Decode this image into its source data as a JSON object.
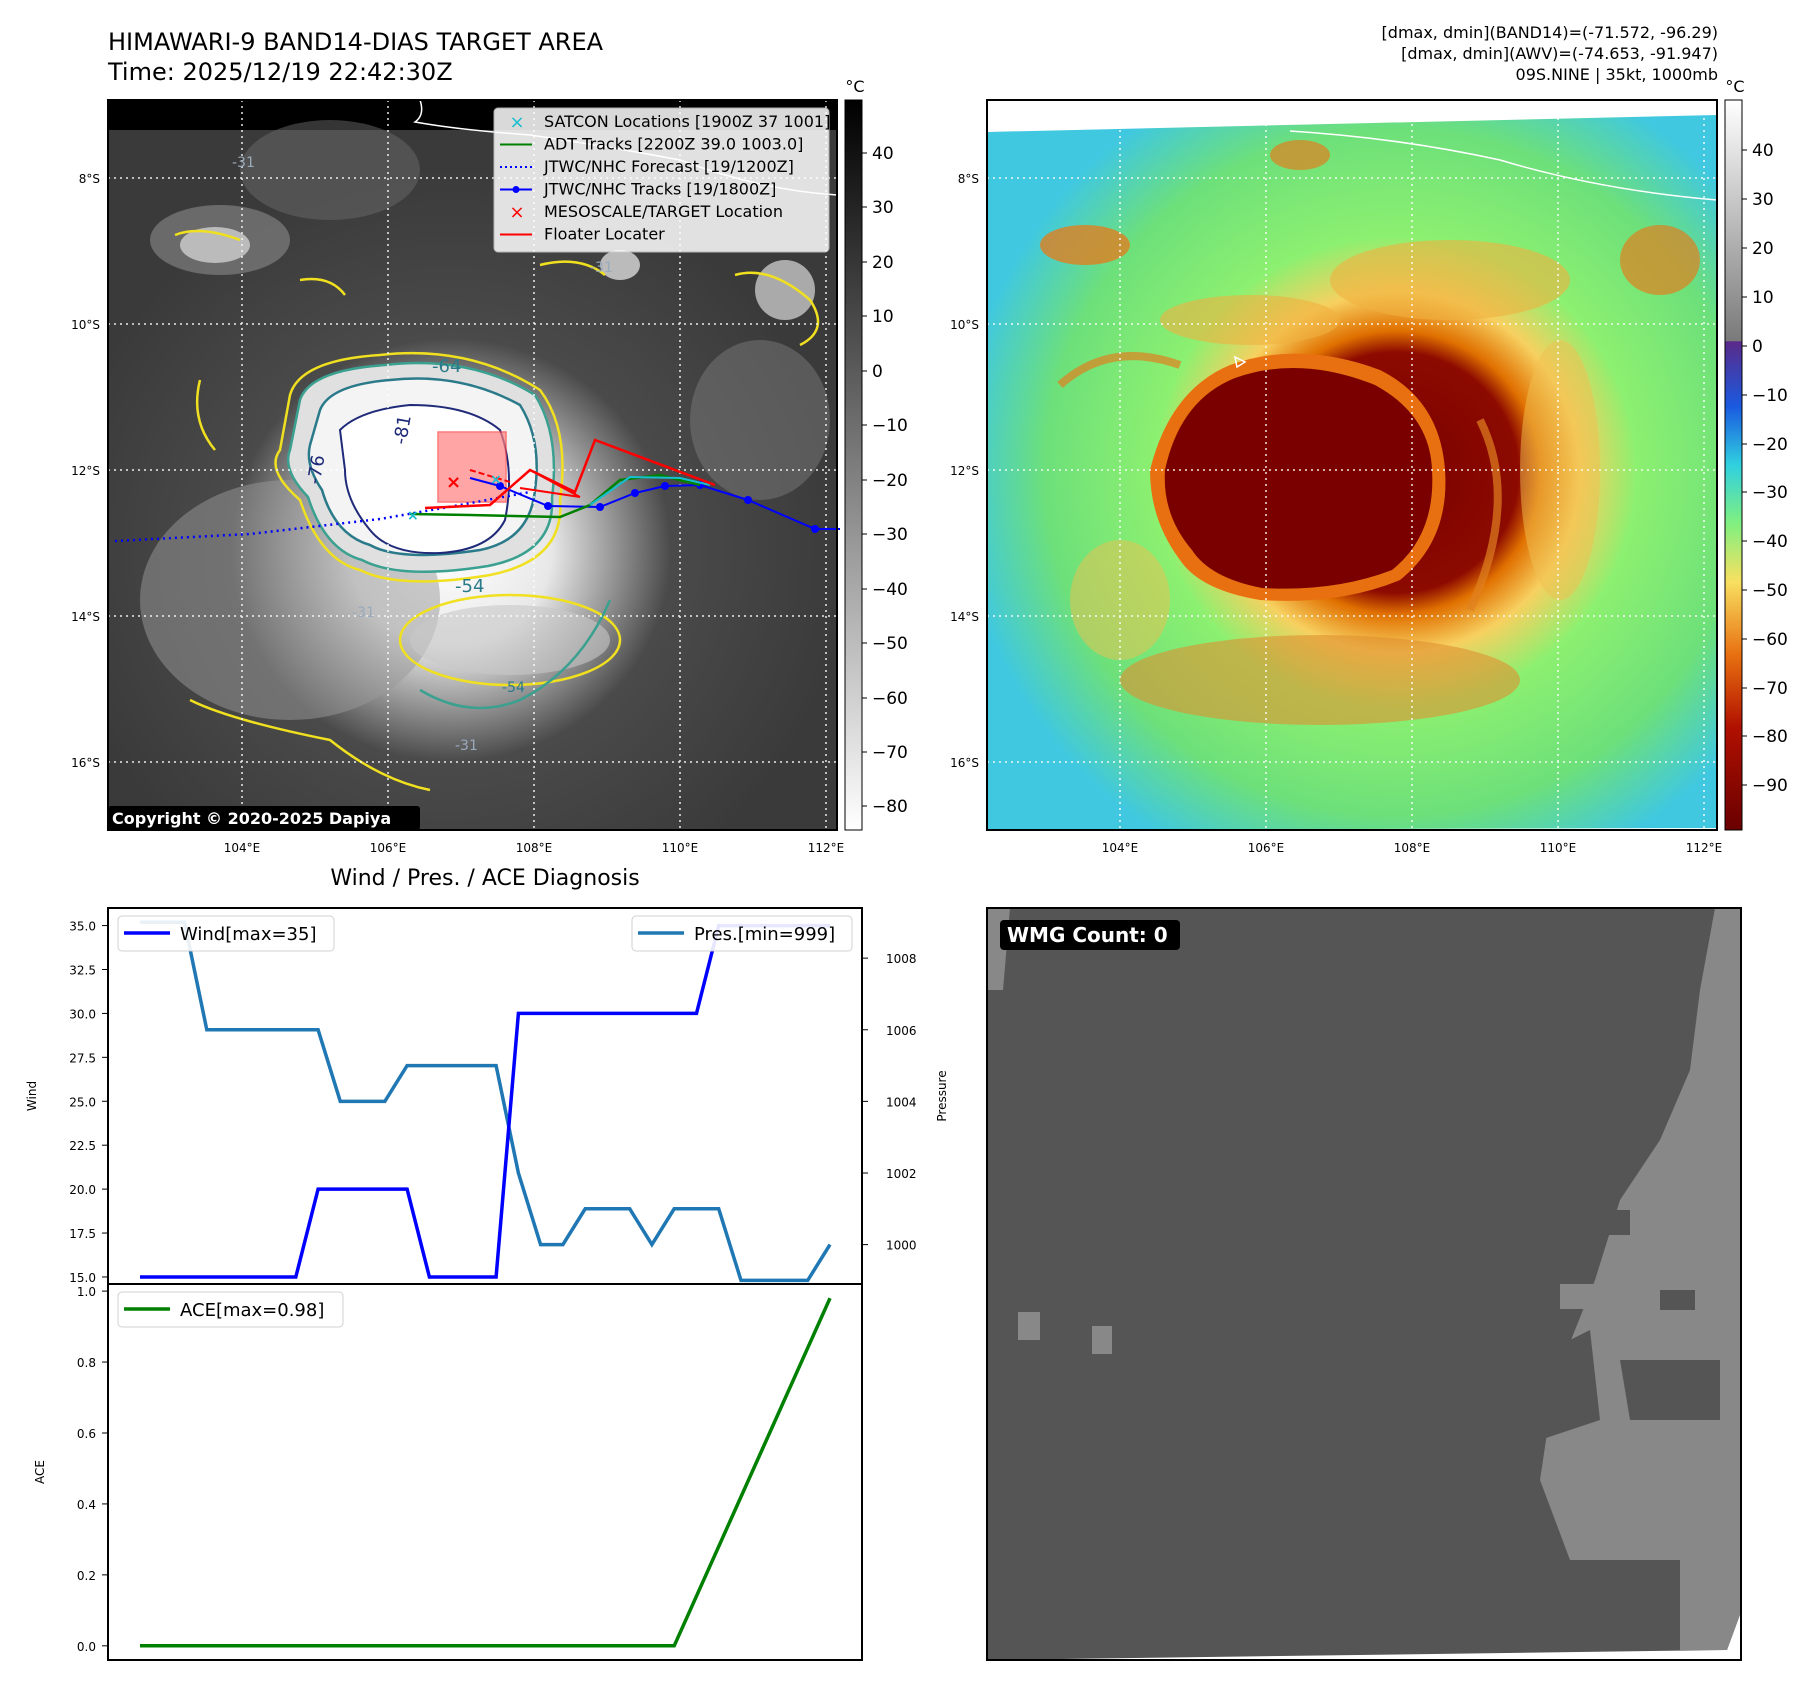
{
  "header": {
    "title": "HIMAWARI-9 BAND14-DIAS TARGET AREA",
    "time": "Time: 2025/12/19 22:42:30Z",
    "stats_band14": "[dmax, dmin](BAND14)=(-71.572, -96.29)",
    "stats_awv": "[dmax, dmin](AWV)=(-74.653, -91.947)",
    "storm_info": "09S.NINE | 35kt, 1000mb"
  },
  "copyright": "Copyright © 2020-2025 Dapiya",
  "map_axes": {
    "lon_labels": [
      "104°E",
      "106°E",
      "108°E",
      "110°E",
      "112°E"
    ],
    "lat_labels": [
      "8°S",
      "10°S",
      "12°S",
      "14°S",
      "16°S"
    ]
  },
  "legend_map": {
    "items": [
      {
        "label": "SATCON Locations [1900Z 37 1001]",
        "color": "#17becf",
        "marker": "x"
      },
      {
        "label": "ADT Tracks [2200Z 39.0 1003.0]",
        "color": "#008000",
        "marker": "line"
      },
      {
        "label": "JTWC/NHC Forecast [19/1200Z]",
        "color": "#0000ff",
        "marker": "dotted"
      },
      {
        "label": "JTWC/NHC Tracks [19/1800Z]",
        "color": "#0000ff",
        "marker": "line-dot"
      },
      {
        "label": "MESOSCALE/TARGET Location",
        "color": "#ff0000",
        "marker": "x"
      },
      {
        "label": "Floater Locater",
        "color": "#ff0000",
        "marker": "line"
      }
    ]
  },
  "contour_labels": [
    "-64",
    "-76",
    "-81",
    "-54",
    "-31",
    "-31",
    "-31",
    "-54",
    "-31"
  ],
  "colorbar_left": {
    "unit": "°C",
    "ticks": [
      "40",
      "30",
      "20",
      "10",
      "0",
      "−10",
      "−20",
      "−30",
      "−40",
      "−50",
      "−60",
      "−70",
      "−80"
    ]
  },
  "colorbar_right": {
    "unit": "°C",
    "ticks": [
      "40",
      "30",
      "20",
      "10",
      "0",
      "−10",
      "−20",
      "−30",
      "−40",
      "−50",
      "−60",
      "−70",
      "−80",
      "−90"
    ]
  },
  "wmg": {
    "label": "WMG Count: 0"
  },
  "chart_data": [
    {
      "type": "line",
      "title": "Wind / Pres. / ACE Diagnosis",
      "ylabel": "Wind",
      "y2label": "Pressure",
      "ylim": [
        14.6,
        36.0
      ],
      "y2lim": [
        998.9,
        1009.4
      ],
      "yticks": [
        "35.0",
        "32.5",
        "30.0",
        "27.5",
        "25.0",
        "22.5",
        "20.0",
        "17.5",
        "15.0"
      ],
      "y2ticks": [
        "1008",
        "1006",
        "1004",
        "1002",
        "1000"
      ],
      "series": [
        {
          "name": "Wind[max=35]",
          "color": "#0000ff",
          "axis": "left",
          "x": [
            0,
            7,
            8,
            12,
            13,
            16,
            17,
            18,
            19,
            25,
            26,
            31
          ],
          "values": [
            15,
            15,
            20,
            20,
            15,
            15,
            30,
            30,
            30,
            30,
            35,
            35
          ]
        },
        {
          "name": "Pres.[min=999]",
          "color": "#1f77b4",
          "axis": "right",
          "x": [
            0,
            2,
            3,
            8,
            9,
            11,
            12,
            16,
            17,
            18,
            19,
            20,
            21,
            22,
            23,
            24,
            25,
            26,
            27,
            28,
            29,
            30,
            31
          ],
          "values": [
            1009,
            1009,
            1006,
            1006,
            1004,
            1004,
            1005,
            1005,
            1002,
            1000,
            1000,
            1001,
            1001,
            1001,
            1000,
            1001,
            1001,
            1001,
            999,
            999,
            999,
            999,
            1000
          ]
        }
      ]
    },
    {
      "type": "line",
      "ylabel": "ACE",
      "ylim": [
        -0.04,
        1.02
      ],
      "yticks": [
        "1.0",
        "0.8",
        "0.6",
        "0.4",
        "0.2",
        "0.0"
      ],
      "series": [
        {
          "name": "ACE[max=0.98]",
          "color": "#008000",
          "x": [
            0,
            24,
            31
          ],
          "values": [
            0,
            0,
            0.98
          ]
        }
      ]
    }
  ]
}
